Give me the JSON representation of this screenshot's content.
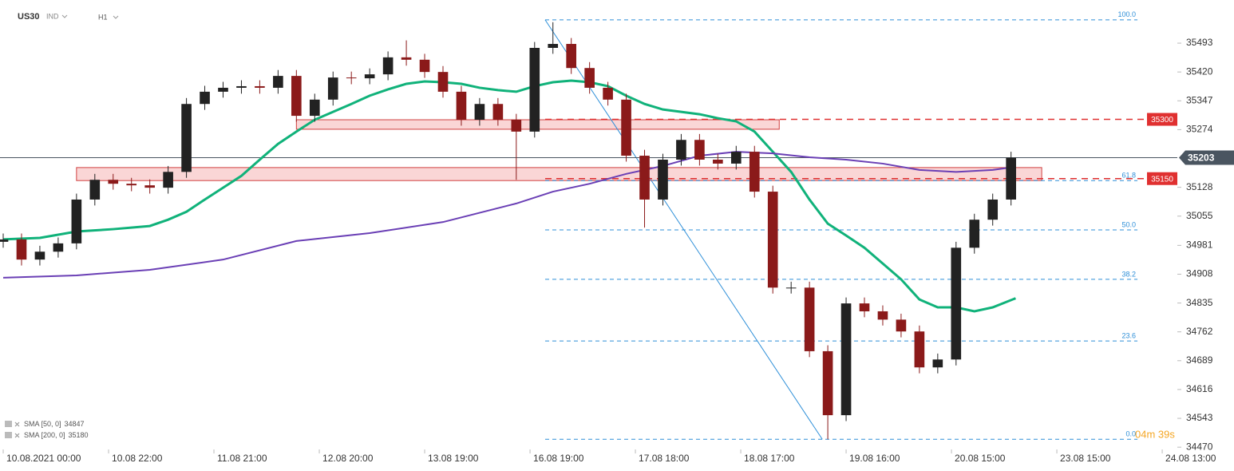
{
  "header": {
    "symbol": "US30",
    "market": "IND",
    "timeframe": "H1"
  },
  "timer": "04m 39s",
  "chart_data": {
    "type": "candlestick",
    "xlim": [
      -0.7,
      256.3
    ],
    "ylim": [
      34440,
      35580
    ],
    "yticks": [
      34470,
      34543,
      34616,
      34689,
      34762,
      34835,
      34908,
      34981,
      35055,
      35128,
      35274,
      35347,
      35420,
      35493
    ],
    "xticks": [
      {
        "value": 0,
        "label": "10.08.2021 00:00"
      },
      {
        "value": 23,
        "label": "10.08 22:00"
      },
      {
        "value": 46,
        "label": "11.08 21:00"
      },
      {
        "value": 69,
        "label": "12.08 20:00"
      },
      {
        "value": 92,
        "label": "13.08 19:00"
      },
      {
        "value": 115,
        "label": "16.08 19:00"
      },
      {
        "value": 138,
        "label": "17.08 18:00"
      },
      {
        "value": 161,
        "label": "18.08 17:00"
      },
      {
        "value": 184,
        "label": "19.08 16:00"
      },
      {
        "value": 207,
        "label": "20.08 15:00"
      },
      {
        "value": 230,
        "label": "23.08 15:00"
      },
      {
        "value": 253,
        "label": "24.08 13:00"
      }
    ],
    "up_color": "#222222",
    "down_color": "#8b1a1a",
    "x": [
      0,
      4,
      8,
      12,
      16,
      20,
      24,
      28,
      32,
      36,
      40,
      44,
      48,
      52,
      56,
      60,
      64,
      68,
      72,
      76,
      80,
      84,
      88,
      92,
      96,
      100,
      104,
      108,
      112,
      116,
      120,
      124,
      128,
      132,
      136,
      140,
      144,
      148,
      152,
      156,
      160,
      164,
      168,
      172,
      176,
      180,
      184,
      188,
      192,
      196,
      200,
      204,
      208,
      212,
      216,
      220
    ],
    "open": [
      34990,
      34996,
      34945,
      34965,
      34986,
      35097,
      35147,
      35137,
      35133,
      35127,
      35167,
      35339,
      35370,
      35380,
      35384,
      35380,
      35410,
      35309,
      35350,
      35406,
      35404,
      35414,
      35457,
      35451,
      35420,
      35370,
      35299,
      35339,
      35299,
      35269,
      35481,
      35491,
      35430,
      35380,
      35350,
      35208,
      35097,
      35198,
      35248,
      35198,
      35188,
      35218,
      35117,
      34874,
      34874,
      34713,
      34551,
      34834,
      34814,
      34793,
      34763,
      34672,
      34692,
      34975,
      35046,
      35097
    ],
    "high": [
      35011,
      35011,
      34980,
      35001,
      35112,
      35162,
      35162,
      35152,
      35148,
      35182,
      35354,
      35385,
      35395,
      35399,
      35399,
      35425,
      35425,
      35365,
      35421,
      35421,
      35429,
      35472,
      35500,
      35466,
      35435,
      35385,
      35354,
      35354,
      35314,
      35496,
      35546,
      35506,
      35445,
      35395,
      35365,
      35223,
      35213,
      35263,
      35263,
      35213,
      35233,
      35233,
      35132,
      34889,
      34889,
      34728,
      34849,
      34849,
      34829,
      34808,
      34778,
      34707,
      34990,
      35061,
      35112,
      35218
    ],
    "low": [
      34975,
      34930,
      34930,
      34950,
      34971,
      35082,
      35122,
      35118,
      35112,
      35112,
      35152,
      35324,
      35355,
      35365,
      35365,
      35365,
      35294,
      35294,
      35335,
      35389,
      35389,
      35399,
      35436,
      35405,
      35355,
      35284,
      35284,
      35284,
      35147,
      35254,
      35466,
      35415,
      35365,
      35335,
      35193,
      35026,
      35082,
      35183,
      35183,
      35173,
      35173,
      35102,
      34859,
      34859,
      34698,
      34490,
      34536,
      34799,
      34778,
      34748,
      34657,
      34657,
      34677,
      34960,
      35031,
      35082
    ],
    "close": [
      34996,
      34945,
      34965,
      34986,
      35097,
      35147,
      35137,
      35133,
      35127,
      35167,
      35339,
      35370,
      35380,
      35384,
      35380,
      35410,
      35309,
      35350,
      35406,
      35404,
      35414,
      35457,
      35451,
      35420,
      35370,
      35299,
      35339,
      35299,
      35269,
      35481,
      35491,
      35430,
      35380,
      35350,
      35208,
      35097,
      35198,
      35248,
      35198,
      35188,
      35218,
      35117,
      34874,
      34874,
      34713,
      34551,
      34834,
      34814,
      34793,
      34763,
      34672,
      34692,
      34975,
      35046,
      35097,
      35203
    ],
    "current_price": 35203,
    "sma": [
      {
        "name": "SMA [50, 0]",
        "last_value": 34847,
        "color": "#10b27a",
        "x": [
          0,
          8,
          16,
          24,
          32,
          36,
          40,
          44,
          48,
          52,
          56,
          60,
          64,
          68,
          72,
          76,
          80,
          84,
          88,
          92,
          96,
          100,
          104,
          108,
          112,
          116,
          120,
          124,
          128,
          132,
          136,
          140,
          144,
          148,
          152,
          156,
          160,
          164,
          168,
          172,
          176,
          180,
          184,
          188,
          192,
          196,
          200,
          204,
          208,
          212,
          216,
          221
        ],
        "values": [
          34996,
          35000,
          35016,
          35022,
          35030,
          35046,
          35066,
          35097,
          35127,
          35157,
          35198,
          35238,
          35269,
          35299,
          35319,
          35339,
          35360,
          35376,
          35390,
          35396,
          35394,
          35390,
          35380,
          35374,
          35370,
          35384,
          35394,
          35398,
          35394,
          35384,
          35360,
          35339,
          35325,
          35319,
          35313,
          35303,
          35295,
          35269,
          35218,
          35167,
          35097,
          35036,
          35006,
          34975,
          34935,
          34895,
          34844,
          34824,
          34824,
          34814,
          34824,
          34847
        ]
      },
      {
        "name": "SMA [200, 0]",
        "last_value": 35180,
        "color": "#6a3fb5",
        "x": [
          0,
          16,
          32,
          48,
          64,
          80,
          96,
          112,
          120,
          128,
          136,
          144,
          152,
          160,
          168,
          176,
          184,
          192,
          200,
          208,
          216,
          221
        ],
        "values": [
          34899,
          34905,
          34919,
          34945,
          34992,
          35012,
          35040,
          35087,
          35117,
          35137,
          35162,
          35182,
          35208,
          35218,
          35214,
          35204,
          35198,
          35188,
          35172,
          35167,
          35172,
          35180
        ]
      }
    ],
    "levels": [
      {
        "value": 35300,
        "color": "#e03030"
      },
      {
        "value": 35150,
        "color": "#e03030"
      }
    ],
    "zones": [
      {
        "x_start": 64,
        "x_end": 169.4,
        "top": 35299,
        "bottom": 35275
      },
      {
        "x_start": 16,
        "x_end": 226.7,
        "top": 35178,
        "bottom": 35145
      }
    ],
    "fib": {
      "x_start": 118.3,
      "x_end": 247.6,
      "x_diag_end": 178.8,
      "color": "#2e8fd8",
      "levels": [
        {
          "label": "100.0",
          "price": 35552
        },
        {
          "label": "61.8",
          "price": 35145
        },
        {
          "label": "50.0",
          "price": 35020
        },
        {
          "label": "38.2",
          "price": 34895
        },
        {
          "label": "23.6",
          "price": 34739
        },
        {
          "label": "0.0",
          "price": 34490
        }
      ]
    }
  }
}
